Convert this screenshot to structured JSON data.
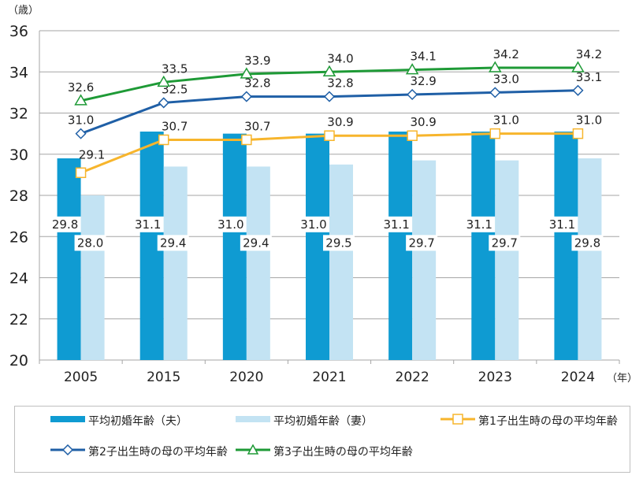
{
  "chart_data": {
    "type": "bar+line",
    "y_unit_label": "（歳）",
    "x_unit_label": "（年）",
    "ylim": [
      20,
      36
    ],
    "yticks": [
      20,
      22,
      24,
      26,
      28,
      30,
      32,
      34,
      36
    ],
    "grid": true,
    "legend_position": "bottom",
    "categories": [
      "2005",
      "2015",
      "2020",
      "2021",
      "2022",
      "2023",
      "2024"
    ],
    "series": [
      {
        "name": "平均初婚年齢（夫）",
        "type": "bar",
        "color": "#0f9bd2",
        "values": [
          29.8,
          31.1,
          31.0,
          31.0,
          31.1,
          31.1,
          31.1
        ]
      },
      {
        "name": "平均初婚年齢（妻）",
        "type": "bar",
        "color": "#c3e3f3",
        "values": [
          28.0,
          29.4,
          29.4,
          29.5,
          29.7,
          29.7,
          29.8
        ]
      },
      {
        "name": "第1子出生時の母の平均年齢",
        "type": "line",
        "marker": "square",
        "color": "#f7b52c",
        "values": [
          29.1,
          30.7,
          30.7,
          30.9,
          30.9,
          31.0,
          31.0
        ]
      },
      {
        "name": "第2子出生時の母の平均年齢",
        "type": "line",
        "marker": "diamond",
        "color": "#1f5fa6",
        "values": [
          31.0,
          32.5,
          32.8,
          32.8,
          32.9,
          33.0,
          33.1
        ]
      },
      {
        "name": "第3子出生時の母の平均年齢",
        "type": "line",
        "marker": "triangle",
        "color": "#1e9a36",
        "values": [
          32.6,
          33.5,
          33.9,
          34.0,
          34.1,
          34.2,
          34.2
        ]
      }
    ]
  }
}
